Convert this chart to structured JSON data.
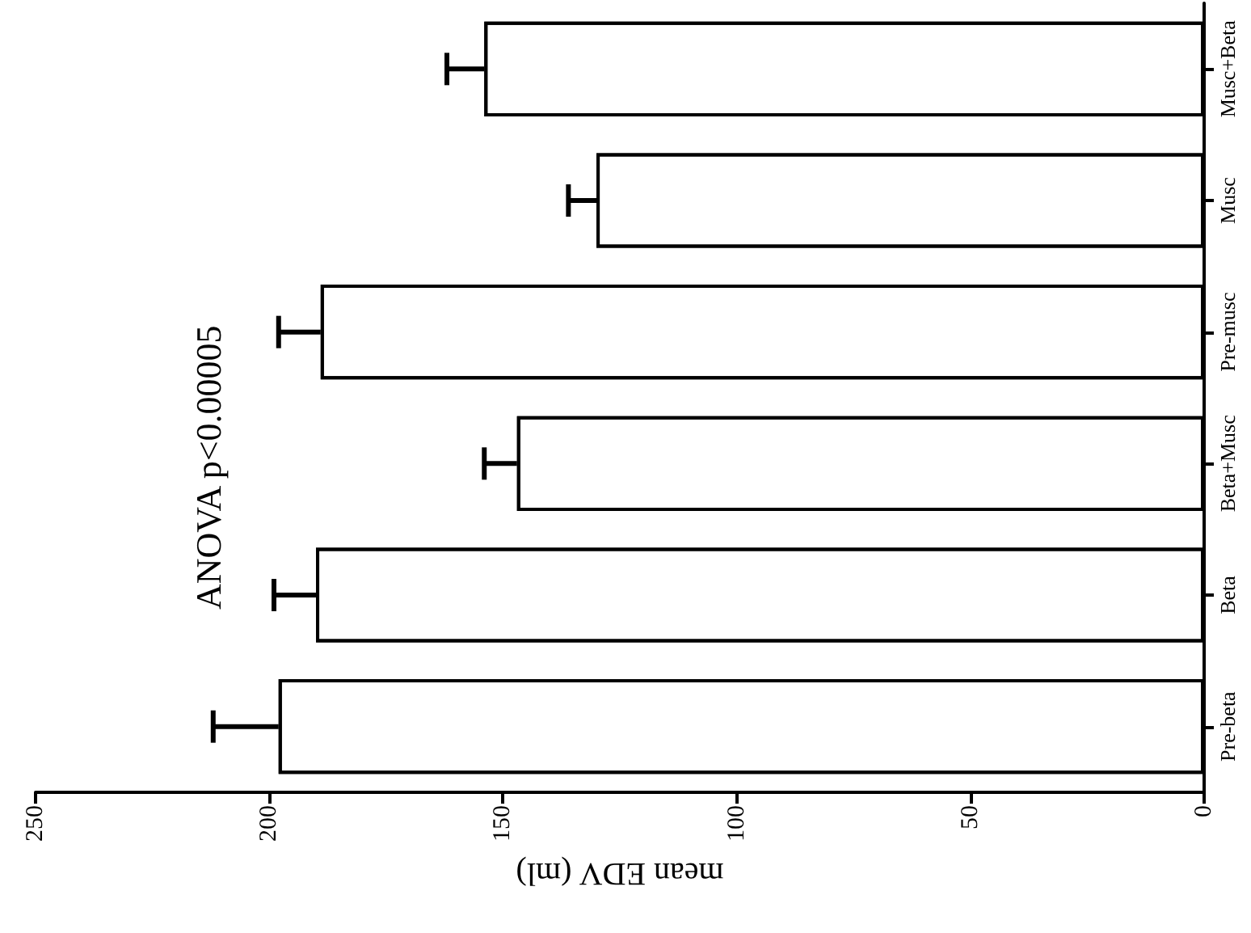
{
  "chart_data": {
    "type": "bar",
    "orientation": "horizontal",
    "categories": [
      "Musc+Beta",
      "Musc",
      "Pre-musc",
      "Beta+Musc",
      "Beta",
      "Pre-beta"
    ],
    "values": [
      154,
      130,
      189,
      147,
      190,
      198
    ],
    "errors": [
      [
        154,
        162
      ],
      [
        130,
        136
      ],
      [
        189,
        198
      ],
      [
        147,
        154
      ],
      [
        190,
        199
      ],
      [
        198,
        212
      ]
    ],
    "color": "#ffffff",
    "xlabel": "mean EDV (ml)",
    "xlim": [
      250,
      0
    ],
    "xticks": [
      250,
      200,
      150,
      100,
      50,
      0
    ],
    "annotations": [
      "ANOVA p<0.00005"
    ]
  }
}
